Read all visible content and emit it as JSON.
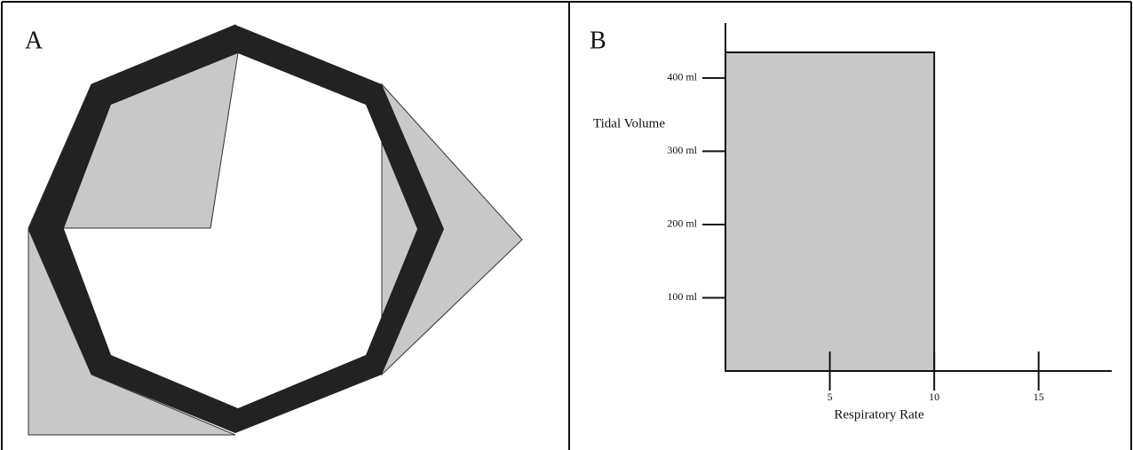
{
  "panels": [
    {
      "label": "A"
    },
    {
      "label": "B"
    }
  ],
  "chart_data": {
    "type": "rect",
    "x_label": "Respiratory Rate",
    "y_label": "Tidal Volume",
    "bar": {
      "respiratory_rate": 10,
      "tidal_volume": 435
    },
    "xlim": [
      0,
      18.5
    ],
    "ylim": [
      0,
      475
    ],
    "xticks": [
      5,
      10,
      15
    ],
    "yticks": [
      {
        "value": 100,
        "label": "100 ml"
      },
      {
        "value": 200,
        "label": "200 ml"
      },
      {
        "value": 300,
        "label": "300 ml"
      },
      {
        "value": 400,
        "label": "400 ml"
      }
    ],
    "color": "#c8c8c8"
  }
}
